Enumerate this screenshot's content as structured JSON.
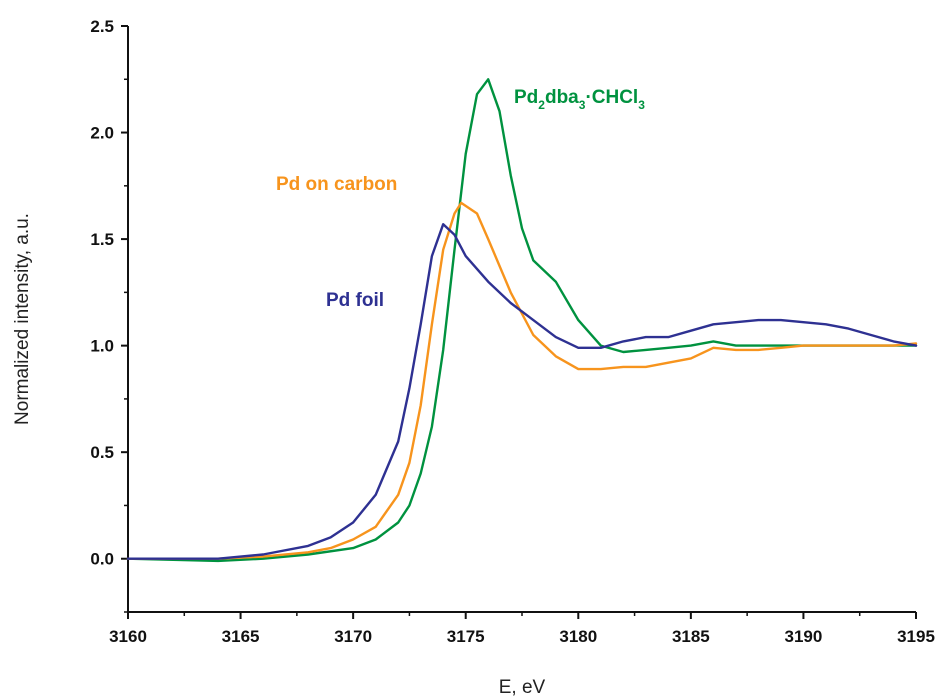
{
  "chart_data": {
    "type": "line",
    "xlabel": "E, eV",
    "ylabel": "Normalized intensity, a.u.",
    "xlim": [
      3160,
      3195
    ],
    "ylim": [
      -0.25,
      2.5
    ],
    "xticks": [
      "3160",
      "3165",
      "3170",
      "3175",
      "3180",
      "3185",
      "3190",
      "3195"
    ],
    "yticks": [
      "0.0",
      "0.5",
      "1.0",
      "1.5",
      "2.0",
      "2.5"
    ],
    "grid": false,
    "series": [
      {
        "name": "Pd foil",
        "color": "#2e3192",
        "x": [
          3160,
          3162,
          3164,
          3166,
          3168,
          3169,
          3170,
          3171,
          3172,
          3172.5,
          3173,
          3173.5,
          3174,
          3174.5,
          3175,
          3176,
          3177,
          3178,
          3179,
          3180,
          3181,
          3182,
          3183,
          3184,
          3185,
          3186,
          3187,
          3188,
          3189,
          3190,
          3191,
          3192,
          3193,
          3194,
          3195
        ],
        "y": [
          0.0,
          0.0,
          0.0,
          0.02,
          0.06,
          0.1,
          0.17,
          0.3,
          0.55,
          0.8,
          1.1,
          1.42,
          1.57,
          1.52,
          1.42,
          1.3,
          1.2,
          1.12,
          1.04,
          0.99,
          0.99,
          1.02,
          1.04,
          1.04,
          1.07,
          1.1,
          1.11,
          1.12,
          1.12,
          1.11,
          1.1,
          1.08,
          1.05,
          1.02,
          1.0
        ]
      },
      {
        "name": "Pd on carbon",
        "color": "#f7941d",
        "x": [
          3160,
          3164,
          3166,
          3168,
          3169,
          3170,
          3171,
          3172,
          3172.5,
          3173,
          3173.5,
          3174,
          3174.5,
          3174.8,
          3175.5,
          3176,
          3177,
          3178,
          3179,
          3180,
          3181,
          3182,
          3183,
          3184,
          3185,
          3186,
          3187,
          3188,
          3189,
          3190,
          3192,
          3194,
          3195
        ],
        "y": [
          0.0,
          0.0,
          0.01,
          0.03,
          0.05,
          0.09,
          0.15,
          0.3,
          0.45,
          0.72,
          1.1,
          1.45,
          1.62,
          1.67,
          1.62,
          1.5,
          1.25,
          1.05,
          0.95,
          0.89,
          0.89,
          0.9,
          0.9,
          0.92,
          0.94,
          0.99,
          0.98,
          0.98,
          0.99,
          1.0,
          1.0,
          1.0,
          1.01
        ]
      },
      {
        "name": "Pd2dba3·CHCl3",
        "color": "#00923f",
        "x": [
          3160,
          3164,
          3166,
          3168,
          3170,
          3171,
          3172,
          3172.5,
          3173,
          3173.5,
          3174,
          3174.5,
          3175,
          3175.5,
          3176,
          3176.5,
          3177,
          3177.5,
          3178,
          3179,
          3180,
          3181,
          3182,
          3183,
          3184,
          3185,
          3186,
          3187,
          3188,
          3190,
          3192,
          3195
        ],
        "y": [
          0.0,
          -0.01,
          0.0,
          0.02,
          0.05,
          0.09,
          0.17,
          0.25,
          0.4,
          0.62,
          0.98,
          1.45,
          1.9,
          2.18,
          2.25,
          2.1,
          1.8,
          1.55,
          1.4,
          1.3,
          1.12,
          1.0,
          0.97,
          0.98,
          0.99,
          1.0,
          1.02,
          1.0,
          1.0,
          1.0,
          1.0,
          1.0
        ]
      }
    ],
    "labels": {
      "pd_foil": "Pd foil",
      "pd_carbon": "Pd on carbon",
      "pd2dba": {
        "pd": "Pd",
        "sub2": "2",
        "dba": "dba",
        "sub3": "3",
        "dot": "·",
        "chcl": "CHCl",
        "sub3b": "3"
      }
    }
  }
}
